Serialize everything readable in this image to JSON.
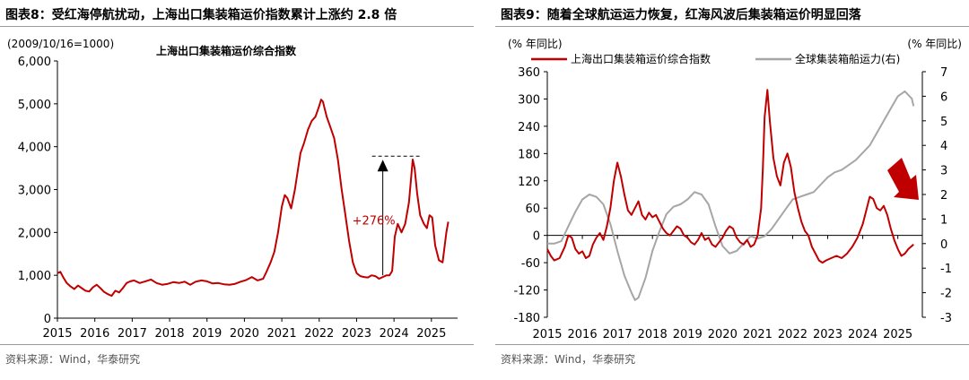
{
  "charts": [
    {
      "title": "图表8：受红海停航扰动，上海出口集装箱运价指数累计上涨约 2.8 倍",
      "source": "资料来源：Wind，华泰研究"
    },
    {
      "title": "图表9：随着全球航运运力恢复，红海风波后集装箱运价明显回落",
      "source": "资料来源：Wind，华泰研究"
    }
  ],
  "chart_data": [
    {
      "type": "line",
      "title": "上海出口集装箱运价综合指数",
      "axis_note": "(2009/10/16=1000)",
      "ylim": [
        0,
        6000
      ],
      "yticks": [
        "0",
        "1,000",
        "2,000",
        "3,000",
        "4,000",
        "5,000",
        "6,000"
      ],
      "xlim": [
        2015,
        2025.7
      ],
      "xticks": [
        "2015",
        "2016",
        "2017",
        "2018",
        "2019",
        "2020",
        "2021",
        "2022",
        "2023",
        "2024",
        "2025"
      ],
      "annotation": "+276%",
      "annotation_from": [
        2023.7,
        1000
      ],
      "annotation_to": [
        2023.7,
        3780
      ],
      "color": "#c00000",
      "series": [
        {
          "name": "上海出口集装箱运价综合指数",
          "x": [
            2015.0,
            2015.08,
            2015.15,
            2015.25,
            2015.35,
            2015.45,
            2015.55,
            2015.65,
            2015.75,
            2015.85,
            2015.95,
            2016.05,
            2016.15,
            2016.25,
            2016.35,
            2016.45,
            2016.55,
            2016.65,
            2016.75,
            2016.85,
            2016.95,
            2017.05,
            2017.2,
            2017.35,
            2017.5,
            2017.65,
            2017.8,
            2017.95,
            2018.1,
            2018.25,
            2018.4,
            2018.55,
            2018.7,
            2018.85,
            2019.0,
            2019.15,
            2019.3,
            2019.45,
            2019.6,
            2019.75,
            2019.9,
            2020.05,
            2020.2,
            2020.35,
            2020.5,
            2020.6,
            2020.7,
            2020.8,
            2020.9,
            2021.0,
            2021.08,
            2021.15,
            2021.25,
            2021.35,
            2021.42,
            2021.5,
            2021.6,
            2021.7,
            2021.8,
            2021.9,
            2022.0,
            2022.05,
            2022.1,
            2022.2,
            2022.3,
            2022.4,
            2022.5,
            2022.6,
            2022.7,
            2022.8,
            2022.9,
            2023.0,
            2023.1,
            2023.2,
            2023.3,
            2023.4,
            2023.5,
            2023.6,
            2023.7,
            2023.8,
            2023.88,
            2023.95,
            2024.02,
            2024.1,
            2024.2,
            2024.3,
            2024.4,
            2024.5,
            2024.55,
            2024.62,
            2024.7,
            2024.8,
            2024.88,
            2024.95,
            2025.02,
            2025.1,
            2025.2,
            2025.3,
            2025.4,
            2025.45
          ],
          "y": [
            1050,
            1080,
            960,
            820,
            740,
            680,
            760,
            700,
            640,
            620,
            720,
            780,
            700,
            610,
            560,
            520,
            640,
            600,
            700,
            820,
            860,
            880,
            820,
            860,
            900,
            820,
            780,
            800,
            840,
            820,
            850,
            780,
            850,
            880,
            860,
            810,
            820,
            790,
            780,
            800,
            850,
            890,
            960,
            880,
            920,
            1100,
            1300,
            1550,
            2000,
            2600,
            2870,
            2800,
            2560,
            3000,
            3400,
            3850,
            4100,
            4400,
            4600,
            4700,
            4950,
            5100,
            5050,
            4700,
            4450,
            4200,
            3700,
            3000,
            2400,
            1800,
            1300,
            1050,
            980,
            960,
            950,
            1000,
            980,
            920,
            960,
            1000,
            1000,
            1100,
            1900,
            2200,
            2000,
            2200,
            2700,
            3700,
            3500,
            2900,
            2400,
            2200,
            2100,
            2400,
            2350,
            1700,
            1350,
            1300,
            2000,
            2250
          ]
        }
      ]
    },
    {
      "type": "line",
      "axis_note_left": "(% 年同比)",
      "axis_note_right": "(% 年同比)",
      "ylim": [
        -180,
        360
      ],
      "yticks": [
        "-180",
        "-120",
        "-60",
        "0",
        "60",
        "120",
        "180",
        "240",
        "300",
        "360"
      ],
      "ylim_right": [
        -3,
        7
      ],
      "yticks_right": [
        "-3",
        "-2",
        "-1",
        "0",
        "1",
        "2",
        "3",
        "4",
        "5",
        "6",
        "7"
      ],
      "xlim": [
        2015,
        2025.7
      ],
      "xticks": [
        "2015",
        "2016",
        "2017",
        "2018",
        "2019",
        "2020",
        "2021",
        "2022",
        "2023",
        "2024",
        "2025"
      ],
      "legend": [
        "上海出口集装箱运价综合指数",
        "全球集装箱船运力(右)"
      ],
      "series": [
        {
          "name": "上海出口集装箱运价综合指数",
          "axis": "left",
          "color": "#c00000",
          "x": [
            2015.0,
            2015.1,
            2015.2,
            2015.35,
            2015.5,
            2015.6,
            2015.7,
            2015.8,
            2015.9,
            2016.0,
            2016.1,
            2016.2,
            2016.3,
            2016.4,
            2016.5,
            2016.6,
            2016.7,
            2016.8,
            2016.9,
            2017.0,
            2017.1,
            2017.2,
            2017.3,
            2017.4,
            2017.5,
            2017.6,
            2017.7,
            2017.8,
            2017.9,
            2018.0,
            2018.1,
            2018.2,
            2018.3,
            2018.4,
            2018.5,
            2018.6,
            2018.7,
            2018.8,
            2018.9,
            2019.0,
            2019.1,
            2019.2,
            2019.3,
            2019.4,
            2019.5,
            2019.6,
            2019.7,
            2019.8,
            2019.9,
            2020.0,
            2020.1,
            2020.2,
            2020.3,
            2020.4,
            2020.5,
            2020.6,
            2020.7,
            2020.8,
            2020.9,
            2021.0,
            2021.1,
            2021.15,
            2021.2,
            2021.28,
            2021.35,
            2021.45,
            2021.55,
            2021.65,
            2021.75,
            2021.85,
            2021.95,
            2022.05,
            2022.15,
            2022.25,
            2022.35,
            2022.45,
            2022.55,
            2022.65,
            2022.75,
            2022.85,
            2022.95,
            2023.1,
            2023.25,
            2023.4,
            2023.55,
            2023.7,
            2023.85,
            2024.0,
            2024.1,
            2024.2,
            2024.3,
            2024.4,
            2024.5,
            2024.55,
            2024.6,
            2024.7,
            2024.8,
            2024.9,
            2025.0,
            2025.1,
            2025.2,
            2025.3,
            2025.45
          ],
          "y": [
            -30,
            -45,
            -55,
            -50,
            -25,
            0,
            -5,
            -30,
            -40,
            -35,
            -50,
            -45,
            -20,
            -5,
            5,
            -10,
            20,
            60,
            120,
            160,
            130,
            90,
            55,
            45,
            60,
            75,
            45,
            35,
            50,
            40,
            45,
            30,
            15,
            5,
            0,
            10,
            20,
            15,
            0,
            -5,
            -15,
            -20,
            -10,
            5,
            -10,
            -5,
            -20,
            -25,
            -15,
            -5,
            10,
            20,
            15,
            -5,
            -15,
            -20,
            -10,
            -25,
            -20,
            0,
            60,
            150,
            260,
            320,
            250,
            170,
            130,
            110,
            160,
            180,
            150,
            95,
            60,
            30,
            10,
            0,
            -25,
            -40,
            -55,
            -60,
            -55,
            -50,
            -45,
            -50,
            -40,
            -25,
            -5,
            25,
            55,
            85,
            80,
            60,
            55,
            60,
            65,
            45,
            15,
            -10,
            -30,
            -45,
            -40,
            -30,
            -20
          ]
        },
        {
          "name": "全球集装箱船运力(右)",
          "axis": "right",
          "color": "#a6a6a6",
          "x": [
            2015.0,
            2015.2,
            2015.4,
            2015.6,
            2015.8,
            2016.0,
            2016.2,
            2016.4,
            2016.6,
            2016.8,
            2017.0,
            2017.2,
            2017.4,
            2017.5,
            2017.6,
            2017.8,
            2018.0,
            2018.2,
            2018.4,
            2018.6,
            2018.8,
            2019.0,
            2019.2,
            2019.4,
            2019.6,
            2019.8,
            2020.0,
            2020.2,
            2020.4,
            2020.6,
            2020.8,
            2021.0,
            2021.2,
            2021.4,
            2021.6,
            2021.8,
            2022.0,
            2022.2,
            2022.4,
            2022.6,
            2022.8,
            2023.0,
            2023.2,
            2023.4,
            2023.6,
            2023.8,
            2024.0,
            2024.2,
            2024.4,
            2024.6,
            2024.8,
            2025.0,
            2025.2,
            2025.4,
            2025.45
          ],
          "y": [
            0.0,
            0.0,
            0.1,
            0.7,
            1.3,
            1.8,
            2.0,
            1.9,
            1.6,
            0.8,
            -0.3,
            -1.3,
            -2.0,
            -2.3,
            -2.2,
            -1.4,
            -0.3,
            0.5,
            1.2,
            1.5,
            1.6,
            1.8,
            2.1,
            2.0,
            1.6,
            0.7,
            -0.1,
            -0.4,
            -0.3,
            0.0,
            0.3,
            0.2,
            0.3,
            0.6,
            1.0,
            1.4,
            1.8,
            1.9,
            2.0,
            2.1,
            2.4,
            2.7,
            2.9,
            3.0,
            3.2,
            3.4,
            3.7,
            4.0,
            4.5,
            5.0,
            5.5,
            6.0,
            6.2,
            5.9,
            5.6
          ]
        }
      ]
    }
  ]
}
